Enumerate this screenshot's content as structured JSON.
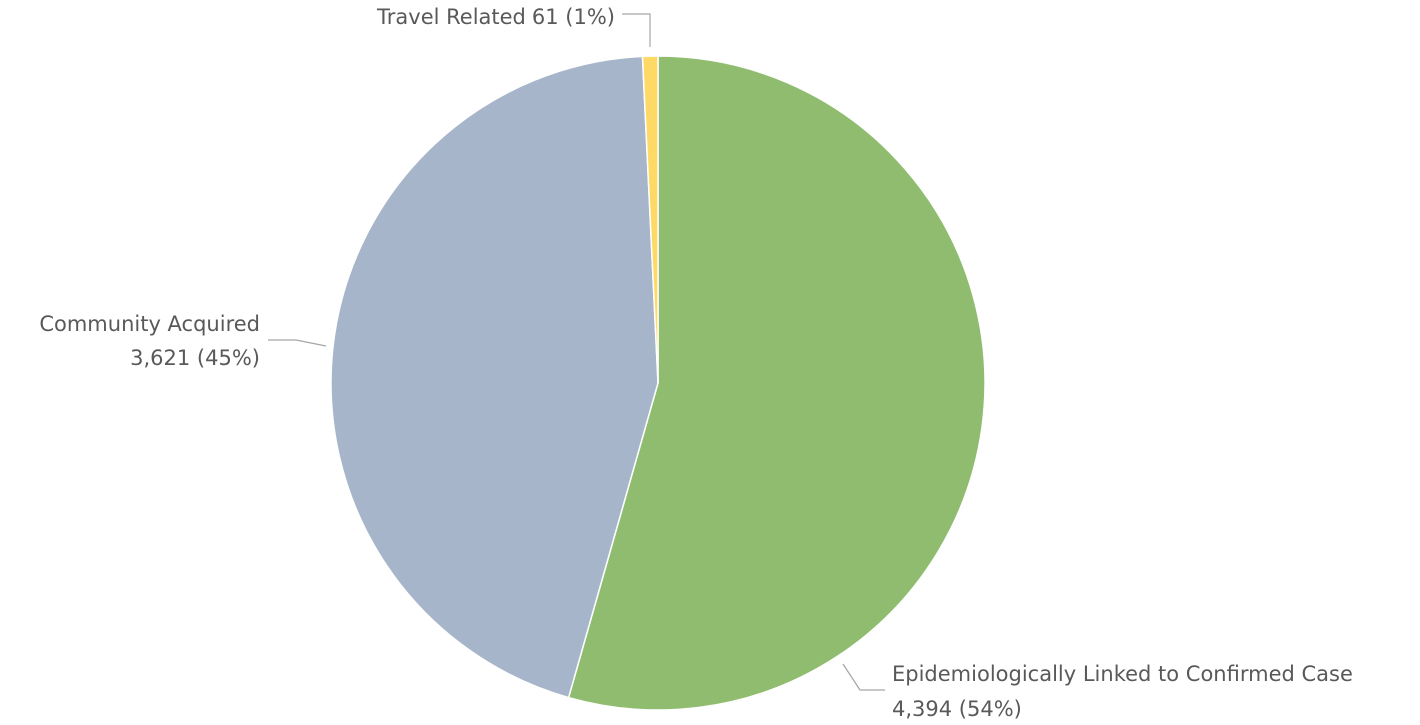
{
  "chart_data": {
    "type": "pie",
    "categories": [
      "Epidemiologically Linked to Confirmed Case",
      "Community Acquired",
      "Travel Related"
    ],
    "values": [
      4394,
      3621,
      61
    ],
    "value_labels": [
      "4,394 (54%)",
      "3,621 (45%)",
      "61 (1%)"
    ],
    "colors": [
      "#8fbc6e",
      "#a6b5ca",
      "#ffd966"
    ]
  }
}
